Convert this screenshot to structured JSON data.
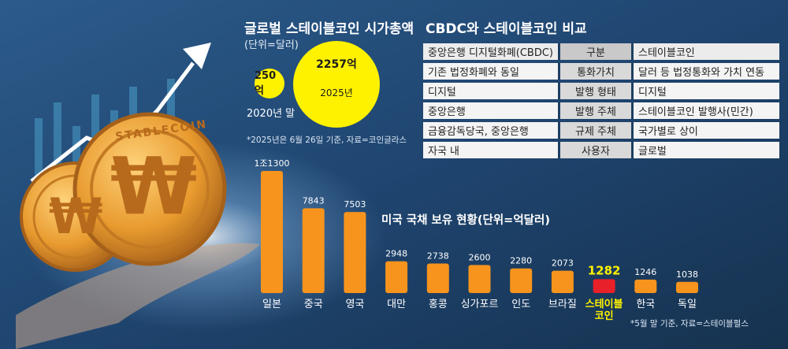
{
  "market_cap": {
    "title": "글로벌 스테이블코인 시가총액",
    "unit": "(단위=달러)",
    "bubbles": [
      {
        "label": "2020년 말",
        "value_text": "250억",
        "value": 250
      },
      {
        "label": "2025년",
        "value_text": "2257억",
        "value": 2257
      }
    ],
    "note": "*2025년은 6월 26일 기준, 자료=코인글라스"
  },
  "coin": {
    "text": "STABLECOIN",
    "symbol": "₩"
  },
  "comparison": {
    "title": "CBDC와 스테이블코인 비교",
    "header": [
      "중앙은행 디지털화폐(CBDC)",
      "구분",
      "스테이블코인"
    ],
    "rows": [
      [
        "기존 법정화폐와 동일",
        "통화가치",
        "달러 등 법정통화와 가치 연동"
      ],
      [
        "디지털",
        "발행 형태",
        "디지털"
      ],
      [
        "중앙은행",
        "발행 주체",
        "스테이블코인 발행사(민간)"
      ],
      [
        "금융감독당국, 중앙은행",
        "규제 주체",
        "국가별로 상이"
      ],
      [
        "자국 내",
        "사용자",
        "글로벌"
      ]
    ]
  },
  "colors": {
    "bar": "#f7941d",
    "highlight_bar": "#e8202a",
    "highlight_text": "#fff200",
    "background": "#1e3f63"
  },
  "chart_data": {
    "type": "bar",
    "title": "미국 국채 보유 현황(단위=억달러)",
    "categories": [
      "일본",
      "중국",
      "영국",
      "대만",
      "홍콩",
      "싱가포르",
      "인도",
      "브라질",
      "스테이블\n코인",
      "한국",
      "독일"
    ],
    "values": [
      11300,
      7843,
      7503,
      2948,
      2738,
      2600,
      2280,
      2073,
      1282,
      1246,
      1038
    ],
    "value_labels": [
      "1조1300",
      "7843",
      "7503",
      "2948",
      "2738",
      "2600",
      "2280",
      "2073",
      "1282",
      "1246",
      "1038"
    ],
    "highlight_index": 8,
    "ylim": [
      0,
      11300
    ],
    "grid": false,
    "note": "*5월 말 기준, 자료=스테이블펄스"
  }
}
